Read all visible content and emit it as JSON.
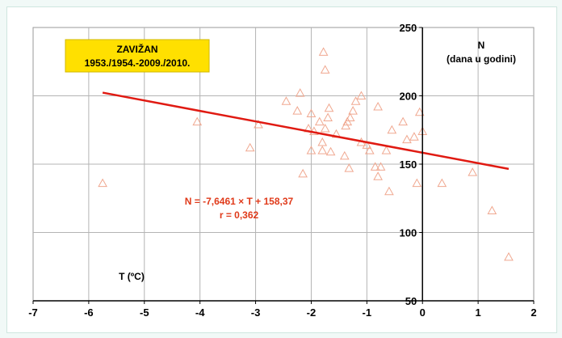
{
  "chart_data": {
    "type": "scatter",
    "title_lines": [
      "ZAVIŽAN",
      "1953./1954.-2009./2010."
    ],
    "ylabel_lines": [
      "N",
      "(dana u godini)"
    ],
    "xlabel": "T (ºC)",
    "xlim": [
      -7,
      2
    ],
    "ylim": [
      50,
      250
    ],
    "xticks": [
      -7,
      -6,
      -5,
      -4,
      -3,
      -2,
      -1,
      0,
      1,
      2
    ],
    "yticks": [
      50,
      100,
      150,
      200,
      250
    ],
    "grid": true,
    "y_axis_at_x": 0,
    "points": [
      {
        "x": -5.75,
        "y": 136
      },
      {
        "x": -4.05,
        "y": 181
      },
      {
        "x": -3.1,
        "y": 162
      },
      {
        "x": -2.95,
        "y": 179
      },
      {
        "x": -2.45,
        "y": 196
      },
      {
        "x": -2.25,
        "y": 189
      },
      {
        "x": -2.2,
        "y": 202
      },
      {
        "x": -2.15,
        "y": 143
      },
      {
        "x": -2.05,
        "y": 176
      },
      {
        "x": -2.0,
        "y": 187
      },
      {
        "x": -2.0,
        "y": 160
      },
      {
        "x": -1.95,
        "y": 174
      },
      {
        "x": -1.85,
        "y": 181
      },
      {
        "x": -1.8,
        "y": 166
      },
      {
        "x": -1.8,
        "y": 160
      },
      {
        "x": -1.78,
        "y": 232
      },
      {
        "x": -1.75,
        "y": 219
      },
      {
        "x": -1.75,
        "y": 176
      },
      {
        "x": -1.7,
        "y": 184
      },
      {
        "x": -1.68,
        "y": 191
      },
      {
        "x": -1.65,
        "y": 159
      },
      {
        "x": -1.55,
        "y": 172
      },
      {
        "x": -1.4,
        "y": 156
      },
      {
        "x": -1.38,
        "y": 178
      },
      {
        "x": -1.35,
        "y": 181
      },
      {
        "x": -1.3,
        "y": 184
      },
      {
        "x": -1.32,
        "y": 147
      },
      {
        "x": -1.25,
        "y": 189
      },
      {
        "x": -1.2,
        "y": 196
      },
      {
        "x": -1.1,
        "y": 200
      },
      {
        "x": -1.1,
        "y": 166
      },
      {
        "x": -1.0,
        "y": 164
      },
      {
        "x": -0.95,
        "y": 160
      },
      {
        "x": -0.85,
        "y": 148
      },
      {
        "x": -0.8,
        "y": 192
      },
      {
        "x": -0.8,
        "y": 141
      },
      {
        "x": -0.75,
        "y": 148
      },
      {
        "x": -0.65,
        "y": 160
      },
      {
        "x": -0.6,
        "y": 130
      },
      {
        "x": -0.55,
        "y": 175
      },
      {
        "x": -0.35,
        "y": 181
      },
      {
        "x": -0.28,
        "y": 168
      },
      {
        "x": -0.15,
        "y": 170
      },
      {
        "x": -0.1,
        "y": 136
      },
      {
        "x": -0.05,
        "y": 188
      },
      {
        "x": 0.0,
        "y": 174
      },
      {
        "x": 0.35,
        "y": 136
      },
      {
        "x": 0.9,
        "y": 144
      },
      {
        "x": 1.25,
        "y": 116
      },
      {
        "x": 1.55,
        "y": 82
      }
    ],
    "regression": {
      "slope": -7.6461,
      "intercept": 158.37,
      "x_range": [
        -5.75,
        1.55
      ],
      "equation": "N = -7,6461 × T + 158,37",
      "r_text": "r = 0,362"
    },
    "colors": {
      "points": "#f0a890",
      "regression": "#e01a12",
      "title_box": "#ffe000",
      "grid": "#b4b4b4"
    }
  }
}
